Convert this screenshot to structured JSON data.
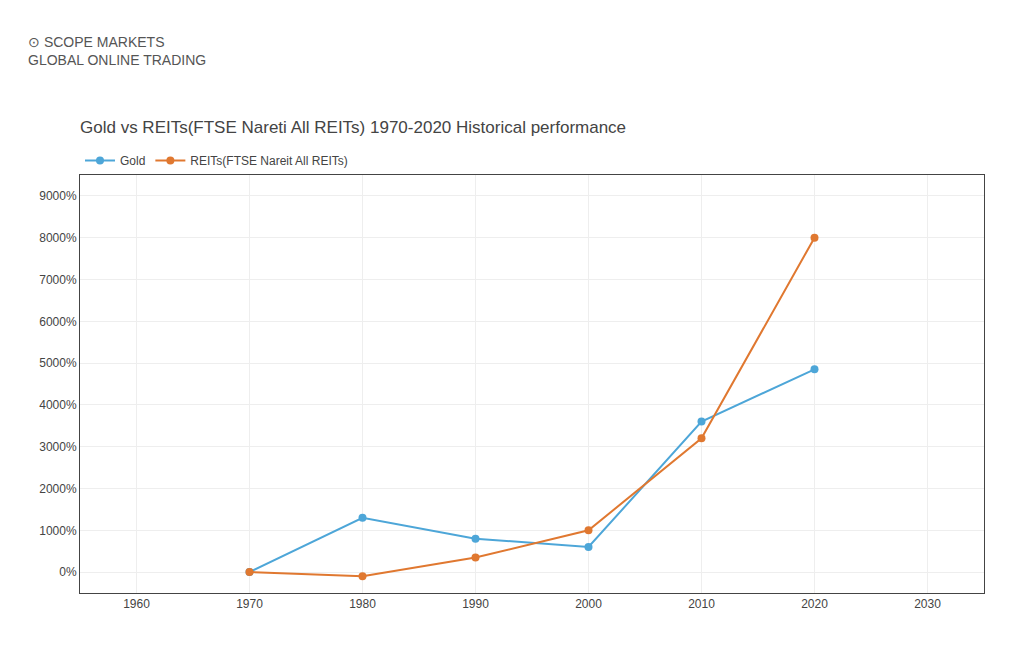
{
  "chart_data": {
    "type": "line",
    "title": "Gold vs REITs(FTSE Nareti All REITs) 1970-2020 Historical performance",
    "annotations": [
      "⊙ SCOPE MARKETS",
      "GLOBAL ONLINE TRADING"
    ],
    "x": [
      1970,
      1980,
      1990,
      2000,
      2010,
      2020
    ],
    "series": [
      {
        "name": "Gold",
        "color": "#4da6d8",
        "marker": "circle",
        "values": [
          0,
          1300,
          800,
          600,
          3600,
          4850
        ]
      },
      {
        "name": "REITs(FTSE Nareit All REITs)",
        "color": "#e07830",
        "marker": "circle",
        "values": [
          0,
          -100,
          350,
          1000,
          3200,
          8000
        ]
      }
    ],
    "xlim": [
      1955,
      2035
    ],
    "xticks": [
      1960,
      1970,
      1980,
      1990,
      2000,
      2010,
      2020,
      2030
    ],
    "ylim": [
      -500,
      9500
    ],
    "yticks": [
      {
        "value": 0,
        "label": "0%"
      },
      {
        "value": 1000,
        "label": "1000%"
      },
      {
        "value": 2000,
        "label": "2000%"
      },
      {
        "value": 3000,
        "label": "3000%"
      },
      {
        "value": 4000,
        "label": "4000%"
      },
      {
        "value": 5000,
        "label": "5000%"
      },
      {
        "value": 6000,
        "label": "6000%"
      },
      {
        "value": 7000,
        "label": "7000%"
      },
      {
        "value": 8000,
        "label": "8000%"
      },
      {
        "value": 9000,
        "label": "9000%"
      }
    ],
    "grid": true,
    "legend": "upper left"
  }
}
